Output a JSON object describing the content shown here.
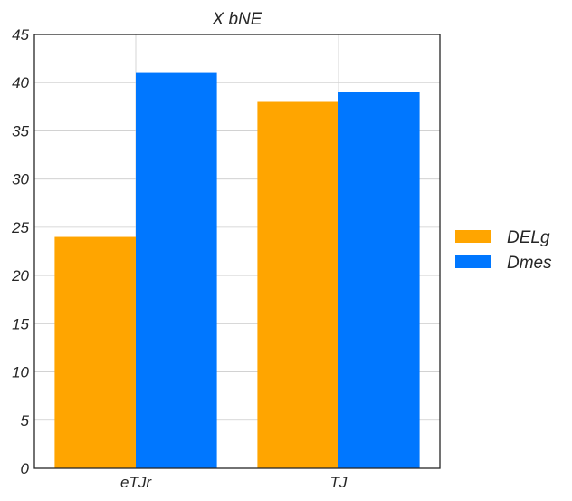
{
  "chart_data": {
    "type": "bar",
    "title": "X bNE",
    "xlabel": "",
    "ylabel": "",
    "categories": [
      "eTJr",
      "TJ"
    ],
    "series": [
      {
        "name": "DELg",
        "values": [
          24,
          38
        ],
        "color": "#FFA500"
      },
      {
        "name": "Dmes",
        "values": [
          41,
          39
        ],
        "color": "#0077FF"
      }
    ],
    "ylim": [
      0,
      45
    ],
    "yticks": [
      "0",
      "5",
      "10",
      "15",
      "20",
      "25",
      "30",
      "35",
      "40",
      "45"
    ],
    "grid": true,
    "legend_position": "right"
  }
}
